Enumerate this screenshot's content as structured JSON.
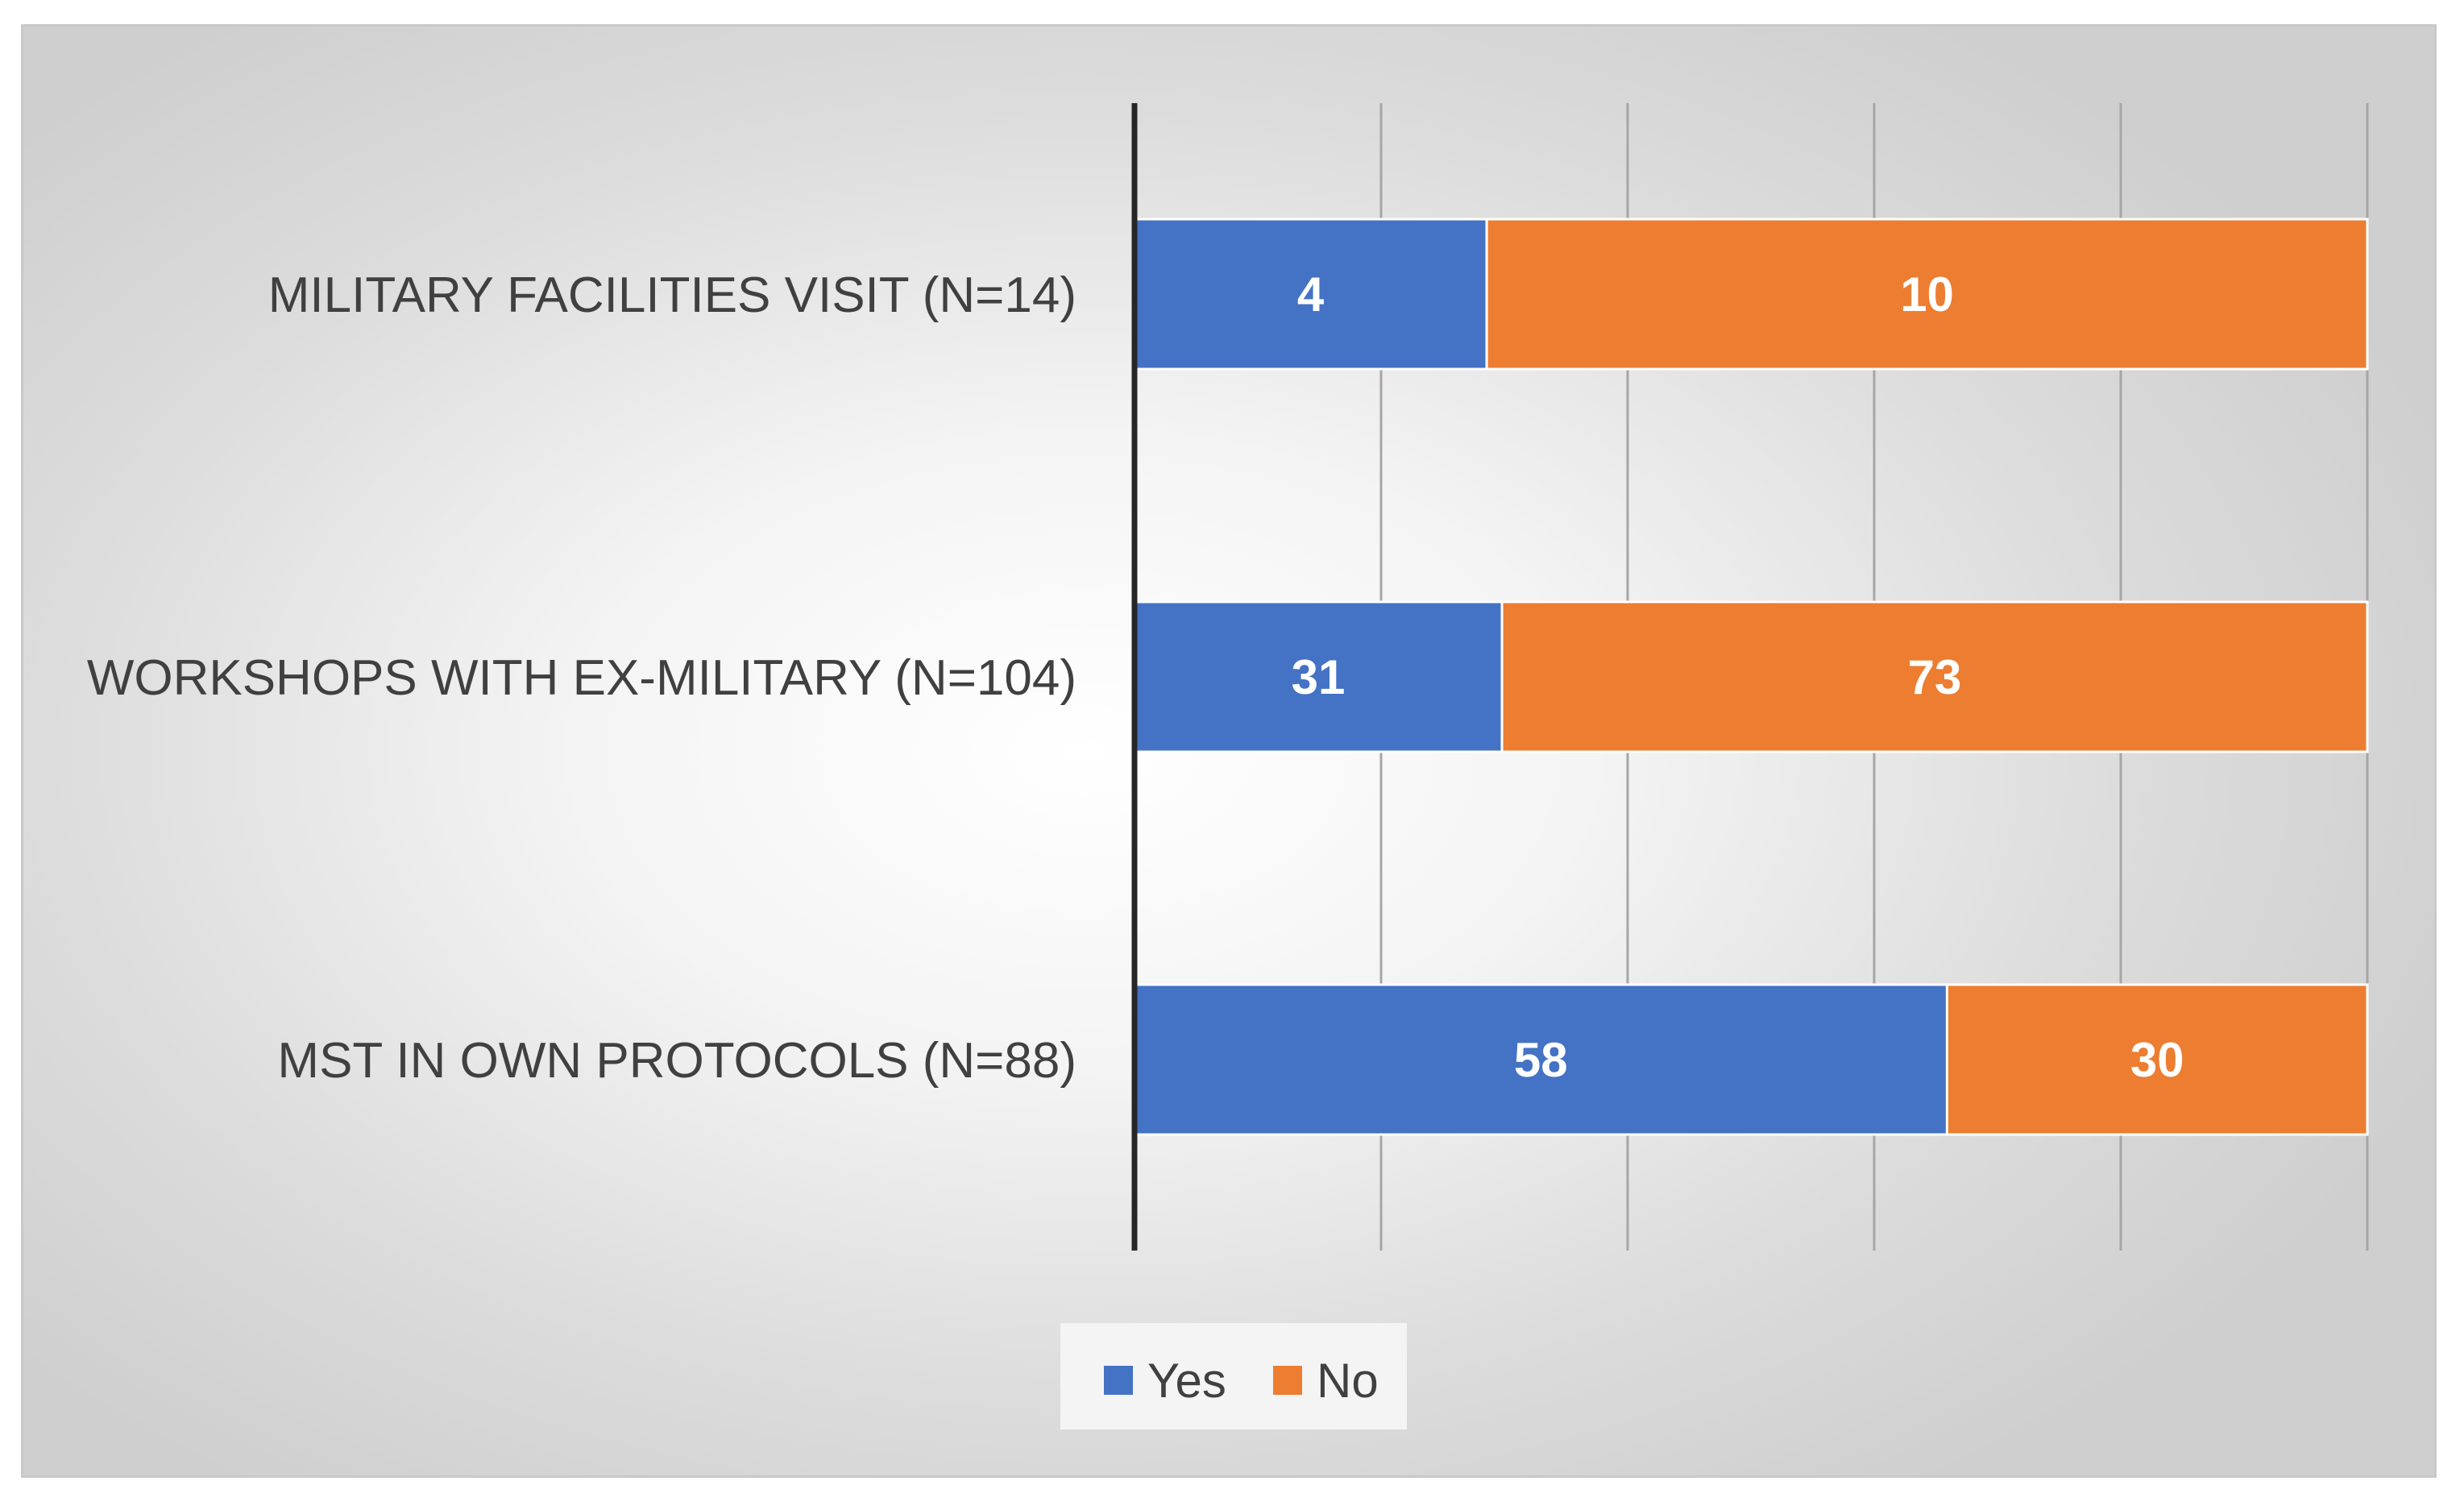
{
  "chart_data": {
    "type": "bar",
    "orientation": "horizontal",
    "stacking": "percent",
    "categories": [
      "MILITARY FACILITIES VISIT (N=14)",
      "WORKSHOPS WITH EX-MILITARY (N=104)",
      "MST IN OWN PROTOCOLS (N=88)"
    ],
    "series": [
      {
        "name": "Yes",
        "color": "#4472c4",
        "values": [
          4,
          31,
          58
        ]
      },
      {
        "name": "No",
        "color": "#ed7d31",
        "values": [
          10,
          73,
          30
        ]
      }
    ],
    "grid": true,
    "legend": "bottom",
    "title": "",
    "xlabel": "",
    "ylabel": ""
  }
}
